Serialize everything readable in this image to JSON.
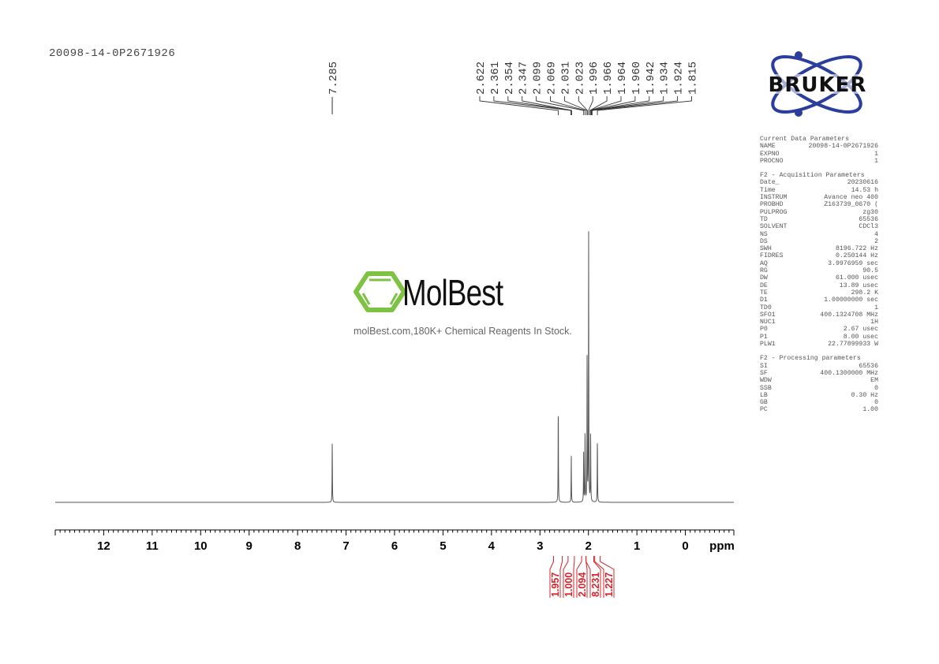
{
  "sample_id": "20098-14-0P2671926",
  "logos": {
    "bruker": "BRUKER",
    "molbest": "MolBest",
    "molbest_tagline": "molBest.com,180K+ Chemical Reagents In Stock."
  },
  "colors": {
    "spectrum": "#555555",
    "integral": "#d8232a",
    "bruker_blue": "#2b3e9e",
    "molbest_green": "#7dc243"
  },
  "parameters": {
    "current": {
      "title": "Current Data Parameters",
      "rows": [
        [
          "NAME",
          "20098-14-0P2671926"
        ],
        [
          "EXPNO",
          "1"
        ],
        [
          "PROCNO",
          "1"
        ]
      ]
    },
    "acquisition": {
      "title": "F2 - Acquisition Parameters",
      "rows": [
        [
          "Date_",
          "20230616"
        ],
        [
          "Time",
          "14.53 h"
        ],
        [
          "INSTRUM",
          "Avance neo 400"
        ],
        [
          "PROBHD",
          "Z163739_0670 ("
        ],
        [
          "PULPROG",
          "zg30"
        ],
        [
          "TD",
          "65536"
        ],
        [
          "SOLVENT",
          "CDCl3"
        ],
        [
          "NS",
          "4"
        ],
        [
          "DS",
          "2"
        ],
        [
          "SWH",
          "8196.722 Hz"
        ],
        [
          "FIDRES",
          "0.250144 Hz"
        ],
        [
          "AQ",
          "3.9976959 sec"
        ],
        [
          "RG",
          "90.5"
        ],
        [
          "DW",
          "61.000 usec"
        ],
        [
          "DE",
          "13.89 usec"
        ],
        [
          "TE",
          "298.2 K"
        ],
        [
          "D1",
          "1.00000000 sec"
        ],
        [
          "TD0",
          "1"
        ],
        [
          "SFO1",
          "400.1324708 MHz"
        ],
        [
          "NUC1",
          "1H"
        ],
        [
          "P0",
          "2.67 usec"
        ],
        [
          "P1",
          "8.00 usec"
        ],
        [
          "PLW1",
          "22.77899933 W"
        ]
      ]
    },
    "processing": {
      "title": "F2 - Processing parameters",
      "rows": [
        [
          "SI",
          "65536"
        ],
        [
          "SF",
          "400.1300000 MHz"
        ],
        [
          "WDW",
          "EM"
        ],
        [
          "SSB",
          "0"
        ],
        [
          "LB",
          "0.30 Hz"
        ],
        [
          "GB",
          "0"
        ],
        [
          "PC",
          "1.00"
        ]
      ]
    }
  },
  "chart_data": {
    "type": "line",
    "xlabel": "ppm",
    "xlim": [
      13.0,
      -1.0
    ],
    "x_reversed": true,
    "xticks": [
      12,
      11,
      10,
      9,
      8,
      7,
      6,
      5,
      4,
      3,
      2,
      1,
      0
    ],
    "grid": false,
    "peaks": [
      {
        "ppm": 7.285,
        "intensity": 23
      },
      {
        "ppm": 2.622,
        "intensity": 37
      },
      {
        "ppm": 2.354,
        "intensity": 17
      },
      {
        "ppm": 2.099,
        "intensity": 18
      },
      {
        "ppm": 2.069,
        "intensity": 27
      },
      {
        "ppm": 2.027,
        "intensity": 55
      },
      {
        "ppm": 1.996,
        "intensity": 100
      },
      {
        "ppm": 1.955,
        "intensity": 27
      },
      {
        "ppm": 1.815,
        "intensity": 24
      }
    ],
    "peak_labels_single": [
      "7.285"
    ],
    "peak_labels_group": [
      "2.622",
      "2.361",
      "2.354",
      "2.347",
      "2.099",
      "2.069",
      "2.031",
      "2.023",
      "1.996",
      "1.966",
      "1.964",
      "1.960",
      "1.942",
      "1.934",
      "1.924",
      "1.815"
    ],
    "integrals": [
      {
        "from": 2.72,
        "to": 2.54,
        "value": "1.957"
      },
      {
        "from": 2.42,
        "to": 2.29,
        "value": "1.000"
      },
      {
        "from": 2.14,
        "to": 2.05,
        "value": "2.094"
      },
      {
        "from": 2.05,
        "to": 1.89,
        "value": "8.231"
      },
      {
        "from": 1.87,
        "to": 1.76,
        "value": "1.227"
      }
    ]
  }
}
